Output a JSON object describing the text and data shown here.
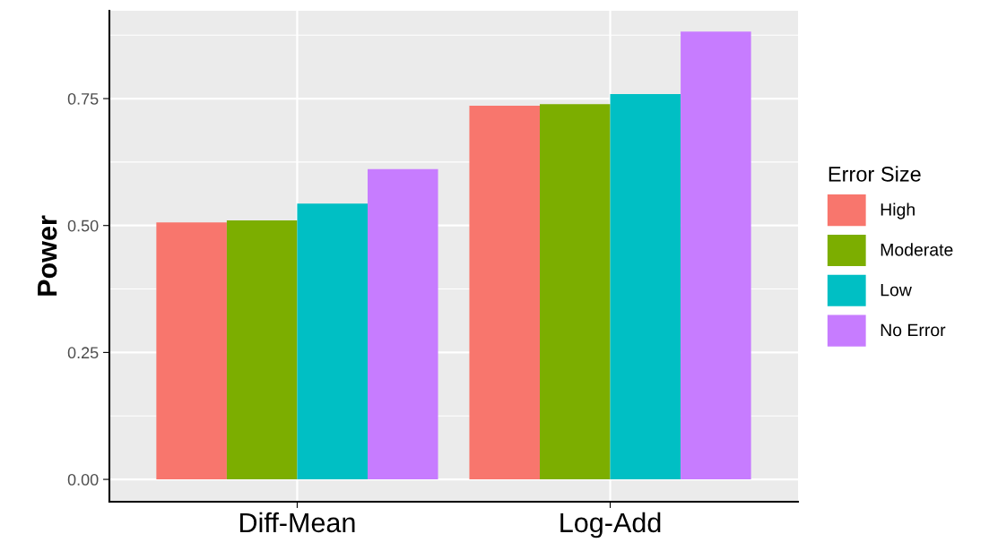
{
  "chart_data": {
    "type": "bar",
    "ylabel": "Power",
    "legend_title": "Error Size",
    "categories": [
      "Diff-Mean",
      "Log-Add"
    ],
    "series": [
      {
        "name": "High",
        "color": "#f8766d",
        "values": [
          0.506,
          0.736
        ]
      },
      {
        "name": "Moderate",
        "color": "#7cae00",
        "values": [
          0.51,
          0.739
        ]
      },
      {
        "name": "Low",
        "color": "#00bfc4",
        "values": [
          0.543,
          0.759
        ]
      },
      {
        "name": "No Error",
        "color": "#c77cff",
        "values": [
          0.611,
          0.882
        ]
      }
    ],
    "ylim": [
      -0.044,
      0.923
    ],
    "yticks": [
      {
        "value": 0,
        "label": "0.00"
      },
      {
        "value": 0.25,
        "label": "0.25"
      },
      {
        "value": 0.5,
        "label": "0.50"
      },
      {
        "value": 0.75,
        "label": "0.75"
      }
    ],
    "grid": true,
    "legend": "right"
  }
}
